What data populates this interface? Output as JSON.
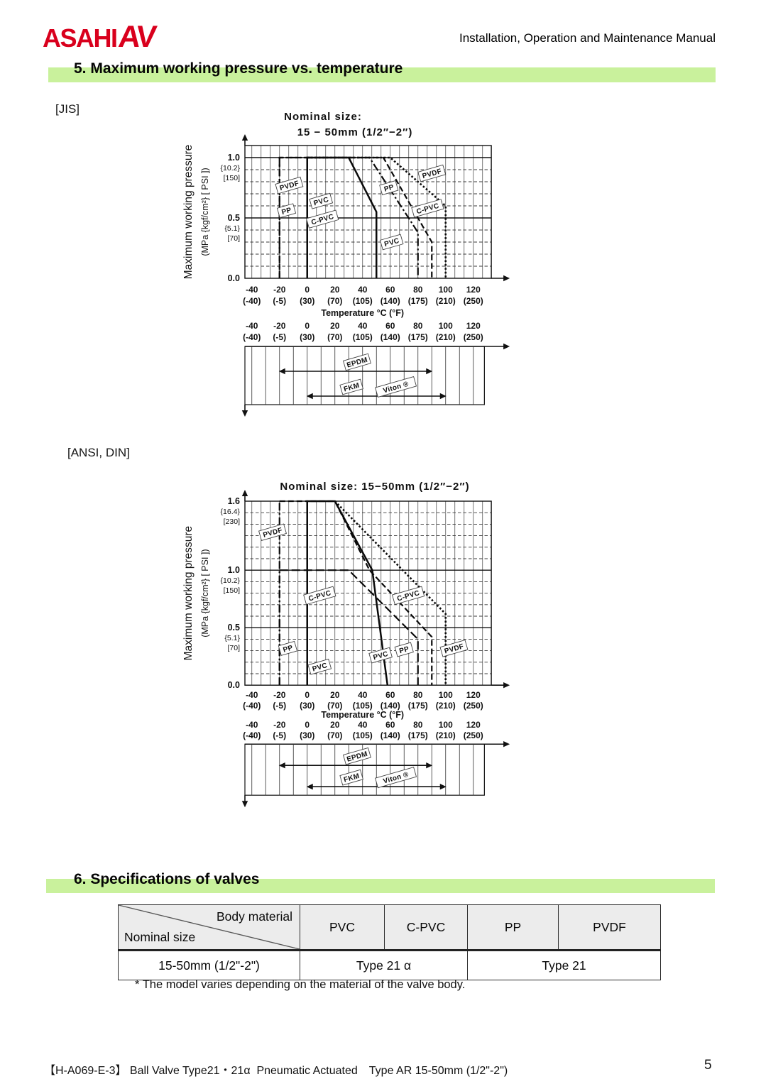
{
  "header": {
    "logo_main": "ASAHI",
    "logo_av": "AV",
    "logo_color": "#d9001d",
    "manual_title": "Installation, Operation and Maintenance Manual"
  },
  "section5": {
    "heading": "5. Maximum working pressure vs. temperature",
    "highlight_color": "#c9f19c"
  },
  "labels": {
    "jis": "[JIS]",
    "ansi": "[ANSI, DIN]"
  },
  "section6": {
    "heading": "6. Specifications of valves",
    "table": {
      "corner": {
        "top_right": "Body  material",
        "bottom_left": "Nominal size"
      },
      "columns": [
        "PVC",
        "C-PVC",
        "PP",
        "PVDF"
      ],
      "row": {
        "nominal_size": "15-50mm (1/2\"-2\")",
        "type_pvc_cpvc": "Type 21 α",
        "type_pp_pvdf": "Type 21"
      }
    },
    "footnote": "* The model varies depending on the material of the valve body."
  },
  "footer": {
    "doc_ref": "【H-A069-E-3】 Ball Valve Type21・21α  Pneumatic Actuated　Type AR 15-50mm (1/2\"-2\")",
    "page_number": "5"
  },
  "chart_data": [
    {
      "id": "jis",
      "type": "line",
      "standard": "JIS",
      "title_lines": [
        "Nominal size:",
        "15 − 50mm (1/2″−2″)"
      ],
      "ylabel_lines": [
        "Maximum working pressure",
        "(MPa {kgf/cm²} [ PSI ])"
      ],
      "xlabel": "Temperature °C (°F)",
      "xlim": [
        -45,
        133
      ],
      "ylim": [
        0,
        1.1
      ],
      "x_tick_values": [
        -40,
        -20,
        0,
        20,
        40,
        60,
        80,
        100,
        120
      ],
      "x_ticks_c": [
        "-40",
        "-20",
        "0",
        "20",
        "40",
        "60",
        "80",
        "100",
        "120"
      ],
      "x_ticks_f": [
        "(-40)",
        "(-5)",
        "(30)",
        "(70)",
        "(105)",
        "(140)",
        "(175)",
        "(210)",
        "(250)"
      ],
      "y_ticks": [
        {
          "v": 1.0,
          "labels": [
            "1.0",
            "{10.2}",
            "[150]"
          ]
        },
        {
          "v": 0.5,
          "labels": [
            "0.5",
            "{5.1}",
            "[70]"
          ]
        },
        {
          "v": 0.0,
          "labels": [
            "0.0"
          ]
        }
      ],
      "series": [
        {
          "name": "PVDF",
          "segments": [
            {
              "style": "dashed",
              "points": [
                [
                  -20,
                  0
                ],
                [
                  -20,
                  1.0
                ],
                [
                  0,
                  1.0
                ]
              ]
            },
            {
              "style": "dotted",
              "points": [
                [
                  0,
                  1.0
                ],
                [
                  60,
                  1.0
                ],
                [
                  100,
                  0.6
                ],
                [
                  100,
                  0
                ]
              ]
            }
          ]
        },
        {
          "name": "PP",
          "segments": [
            {
              "style": "dashdot",
              "points": [
                [
                  -20,
                  0
                ],
                [
                  -20,
                  1.0
                ],
                [
                  45,
                  1.0
                ],
                [
                  80,
                  0.38
                ],
                [
                  80,
                  0
                ]
              ]
            }
          ]
        },
        {
          "name": "C-PVC",
          "segments": [
            {
              "style": "dashed",
              "points": [
                [
                  0,
                  0
                ],
                [
                  0,
                  1.0
                ],
                [
                  55,
                  1.0
                ],
                [
                  90,
                  0.3
                ],
                [
                  90,
                  0
                ]
              ]
            }
          ]
        },
        {
          "name": "PVC",
          "segments": [
            {
              "style": "solid",
              "points": [
                [
                  0,
                  0
                ],
                [
                  0,
                  1.0
                ],
                [
                  30,
                  1.0
                ],
                [
                  50,
                  0.55
                ],
                [
                  50,
                  0
                ]
              ]
            }
          ]
        }
      ],
      "line_labels": [
        {
          "text": "PVDF",
          "x": -13,
          "y": 0.77
        },
        {
          "text": "PP",
          "x": -15,
          "y": 0.56
        },
        {
          "text": "PVC",
          "x": 10,
          "y": 0.64
        },
        {
          "text": "C-PVC",
          "x": 11,
          "y": 0.49
        },
        {
          "text": "PP",
          "x": 59,
          "y": 0.75
        },
        {
          "text": "PVDF",
          "x": 90,
          "y": 0.87
        },
        {
          "text": "C-PVC",
          "x": 87,
          "y": 0.58
        },
        {
          "text": "PVC",
          "x": 61,
          "y": 0.3
        }
      ],
      "seal_bands": {
        "arrows": [
          {
            "material": "EPDM",
            "from_c": -20,
            "to_c": 90,
            "row": 1,
            "labels": [
              {
                "text": "EPDM",
                "x": 36
              }
            ]
          },
          {
            "material": "FKM / Viton®",
            "from_c": 0,
            "to_c": 100,
            "row": 2,
            "labels": [
              {
                "text": "FKM",
                "x": 32
              },
              {
                "text": "Viton ®",
                "x": 64
              }
            ]
          }
        ]
      }
    },
    {
      "id": "ansi",
      "type": "line",
      "standard": "ANSI, DIN",
      "title_lines": [
        "Nominal size:  15−50mm (1/2″−2″)"
      ],
      "ylabel_lines": [
        "Maximum working pressure",
        "(MPa {kgf/cm²} [ PSI ])"
      ],
      "xlabel": "Temperature °C (°F)",
      "xlim": [
        -45,
        133
      ],
      "ylim": [
        0,
        1.6
      ],
      "x_tick_values": [
        -40,
        -20,
        0,
        20,
        40,
        60,
        80,
        100,
        120
      ],
      "x_ticks_c": [
        "-40",
        "-20",
        "0",
        "20",
        "40",
        "60",
        "80",
        "100",
        "120"
      ],
      "x_ticks_f": [
        "(-40)",
        "(-5)",
        "(30)",
        "(70)",
        "(105)",
        "(140)",
        "(175)",
        "(210)",
        "(250)"
      ],
      "y_ticks": [
        {
          "v": 1.6,
          "labels": [
            "1.6",
            "{16.4}",
            "[230]"
          ]
        },
        {
          "v": 1.0,
          "labels": [
            "1.0",
            "{10.2}",
            "[150]"
          ]
        },
        {
          "v": 0.5,
          "labels": [
            "0.5",
            "{5.1}",
            "[70]"
          ]
        },
        {
          "v": 0.0,
          "labels": [
            "0.0"
          ]
        }
      ],
      "series": [
        {
          "name": "PVDF",
          "segments": [
            {
              "style": "dashdot",
              "points": [
                [
                  -20,
                  0
                ],
                [
                  -20,
                  1.6
                ]
              ]
            },
            {
              "style": "dashed",
              "points": [
                [
                  -20,
                  1.6
                ],
                [
                  0,
                  1.6
                ]
              ]
            },
            {
              "style": "dotted",
              "points": [
                [
                  20,
                  1.6
                ],
                [
                  100,
                  0.62
                ],
                [
                  100,
                  0
                ]
              ]
            }
          ]
        },
        {
          "name": "PP",
          "segments": [
            {
              "style": "dashdot",
              "points": [
                [
                  -20,
                  0
                ],
                [
                  -20,
                  1.0
                ]
              ]
            },
            {
              "style": "longdash",
              "points": [
                [
                  -20,
                  1.0
                ],
                [
                  30,
                  1.0
                ],
                [
                  80,
                  0.4
                ],
                [
                  80,
                  0
                ]
              ]
            }
          ]
        },
        {
          "name": "C-PVC",
          "segments": [
            {
              "style": "dashed",
              "points": [
                [
                  0,
                  0
                ],
                [
                  0,
                  1.6
                ],
                [
                  20,
                  1.6
                ],
                [
                  45,
                  1.0
                ],
                [
                  90,
                  0.42
                ],
                [
                  90,
                  0
                ]
              ]
            }
          ]
        },
        {
          "name": "PVC",
          "segments": [
            {
              "style": "solid",
              "points": [
                [
                  0,
                  0
                ],
                [
                  0,
                  1.6
                ],
                [
                  20,
                  1.6
                ],
                [
                  47,
                  1.0
                ],
                [
                  58,
                  0
                ]
              ]
            }
          ]
        }
      ],
      "line_labels": [
        {
          "text": "PVDF",
          "x": -25,
          "y": 1.33
        },
        {
          "text": "C-PVC",
          "x": 9,
          "y": 0.78
        },
        {
          "text": "PP",
          "x": -14,
          "y": 0.32
        },
        {
          "text": "PVC",
          "x": 9,
          "y": 0.16
        },
        {
          "text": "PVC",
          "x": 53,
          "y": 0.26
        },
        {
          "text": "PP",
          "x": 70,
          "y": 0.31
        },
        {
          "text": "C-PVC",
          "x": 73,
          "y": 0.78
        },
        {
          "text": "PVDF",
          "x": 106,
          "y": 0.32
        }
      ],
      "seal_bands": {
        "arrows": [
          {
            "material": "EPDM",
            "from_c": -20,
            "to_c": 90,
            "row": 1,
            "labels": [
              {
                "text": "EPDM",
                "x": 36
              }
            ]
          },
          {
            "material": "FKM / Viton®",
            "from_c": 0,
            "to_c": 100,
            "row": 2,
            "labels": [
              {
                "text": "FKM",
                "x": 32
              },
              {
                "text": "Viton ®",
                "x": 64
              }
            ]
          }
        ]
      }
    }
  ]
}
